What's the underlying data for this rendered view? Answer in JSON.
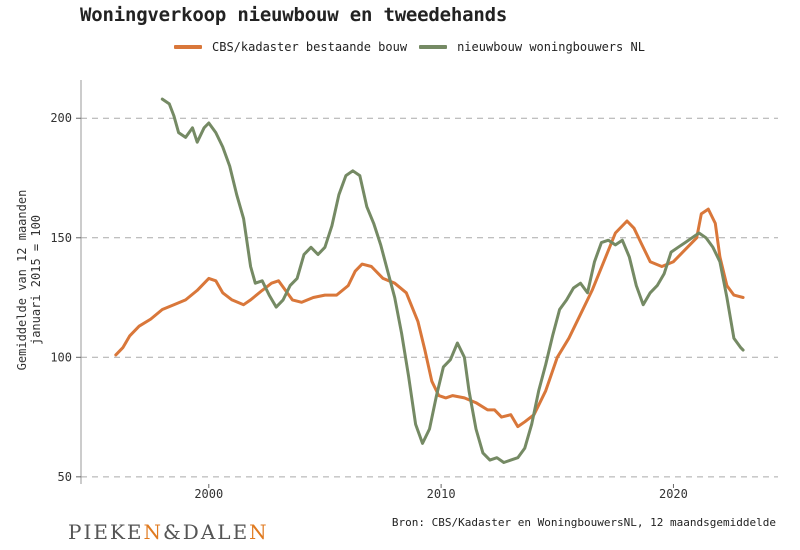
{
  "title": "Woningverkoop nieuwbouw en tweedehands",
  "source": "Bron: CBS/Kadaster en WoningbouwersNL, 12 maandsgemiddelde",
  "logo": {
    "left": "PIEKE",
    "n1": "N",
    "mid": "&DALE",
    "n2": "N"
  },
  "colors": {
    "orange": "#d9773a",
    "green": "#758a64",
    "grid": "#aaaaaa"
  },
  "chart_data": {
    "type": "line",
    "title": "Woningverkoop nieuwbouw en tweedehands",
    "ylabel": [
      "Gemiddelde van 12 maanden",
      "januari 2015 = 100"
    ],
    "xlabel": "",
    "xlim": [
      1994.5,
      2024.5
    ],
    "ylim": [
      47,
      216
    ],
    "yticks": [
      50,
      100,
      150,
      200
    ],
    "xticks": [
      2000,
      2010,
      2020
    ],
    "grid": "horizontal dashed",
    "legend_position": "top",
    "series": [
      {
        "name": "CBS/kadaster bestaande bouw",
        "color": "#d9773a",
        "x": [
          1996.0,
          1996.3,
          1996.6,
          1997.0,
          1997.5,
          1998.0,
          1998.5,
          1999.0,
          1999.5,
          2000.0,
          2000.3,
          2000.6,
          2001.0,
          2001.5,
          2001.8,
          2002.3,
          2002.7,
          2003.0,
          2003.3,
          2003.6,
          2004.0,
          2004.5,
          2005.0,
          2005.5,
          2006.0,
          2006.3,
          2006.6,
          2007.0,
          2007.5,
          2008.0,
          2008.5,
          2009.0,
          2009.3,
          2009.6,
          2009.9,
          2010.2,
          2010.5,
          2011.0,
          2011.5,
          2012.0,
          2012.3,
          2012.6,
          2013.0,
          2013.3,
          2013.6,
          2014.0,
          2014.5,
          2015.0,
          2015.5,
          2016.0,
          2016.5,
          2017.0,
          2017.5,
          2018.0,
          2018.3,
          2018.6,
          2019.0,
          2019.5,
          2020.0,
          2020.5,
          2021.0,
          2021.2,
          2021.5,
          2021.8,
          2022.0,
          2022.3,
          2022.6,
          2023.0
        ],
        "values": [
          101,
          104,
          109,
          113,
          116,
          120,
          122,
          124,
          128,
          133,
          132,
          127,
          124,
          122,
          124,
          128,
          131,
          132,
          128,
          124,
          123,
          125,
          126,
          126,
          130,
          136,
          139,
          138,
          133,
          131,
          127,
          115,
          103,
          90,
          84,
          83,
          84,
          83,
          81,
          78,
          78,
          75,
          76,
          71,
          73,
          76,
          86,
          100,
          108,
          118,
          128,
          140,
          152,
          157,
          154,
          148,
          140,
          138,
          140,
          145,
          150,
          160,
          162,
          156,
          142,
          130,
          126,
          125
        ]
      },
      {
        "name": "nieuwbouw woningbouwers NL",
        "color": "#758a64",
        "x": [
          1998.0,
          1998.3,
          1998.5,
          1998.7,
          1999.0,
          1999.3,
          1999.5,
          1999.8,
          2000.0,
          2000.3,
          2000.6,
          2000.9,
          2001.2,
          2001.5,
          2001.8,
          2002.0,
          2002.3,
          2002.6,
          2002.9,
          2003.2,
          2003.5,
          2003.8,
          2004.1,
          2004.4,
          2004.7,
          2005.0,
          2005.3,
          2005.6,
          2005.9,
          2006.2,
          2006.5,
          2006.8,
          2007.1,
          2007.4,
          2007.7,
          2008.0,
          2008.3,
          2008.6,
          2008.9,
          2009.2,
          2009.5,
          2009.8,
          2010.1,
          2010.4,
          2010.7,
          2011.0,
          2011.2,
          2011.5,
          2011.8,
          2012.1,
          2012.4,
          2012.7,
          2013.0,
          2013.3,
          2013.6,
          2013.9,
          2014.2,
          2014.5,
          2014.8,
          2015.1,
          2015.4,
          2015.7,
          2016.0,
          2016.3,
          2016.6,
          2016.9,
          2017.2,
          2017.5,
          2017.8,
          2018.1,
          2018.4,
          2018.7,
          2019.0,
          2019.3,
          2019.6,
          2019.9,
          2020.2,
          2020.5,
          2020.8,
          2021.1,
          2021.4,
          2021.7,
          2022.0,
          2022.3,
          2022.6,
          2022.9,
          2023.0
        ],
        "values": [
          208,
          206,
          201,
          194,
          192,
          196,
          190,
          196,
          198,
          194,
          188,
          180,
          168,
          158,
          138,
          131,
          132,
          126,
          121,
          124,
          130,
          133,
          143,
          146,
          143,
          146,
          155,
          168,
          176,
          178,
          176,
          163,
          156,
          147,
          136,
          125,
          110,
          92,
          72,
          64,
          70,
          84,
          96,
          99,
          106,
          100,
          86,
          70,
          60,
          57,
          58,
          56,
          57,
          58,
          62,
          72,
          86,
          97,
          109,
          120,
          124,
          129,
          131,
          127,
          140,
          148,
          149,
          147,
          149,
          142,
          130,
          122,
          127,
          130,
          135,
          144,
          146,
          148,
          150,
          152,
          150,
          146,
          140,
          125,
          108,
          104,
          103
        ]
      }
    ]
  }
}
